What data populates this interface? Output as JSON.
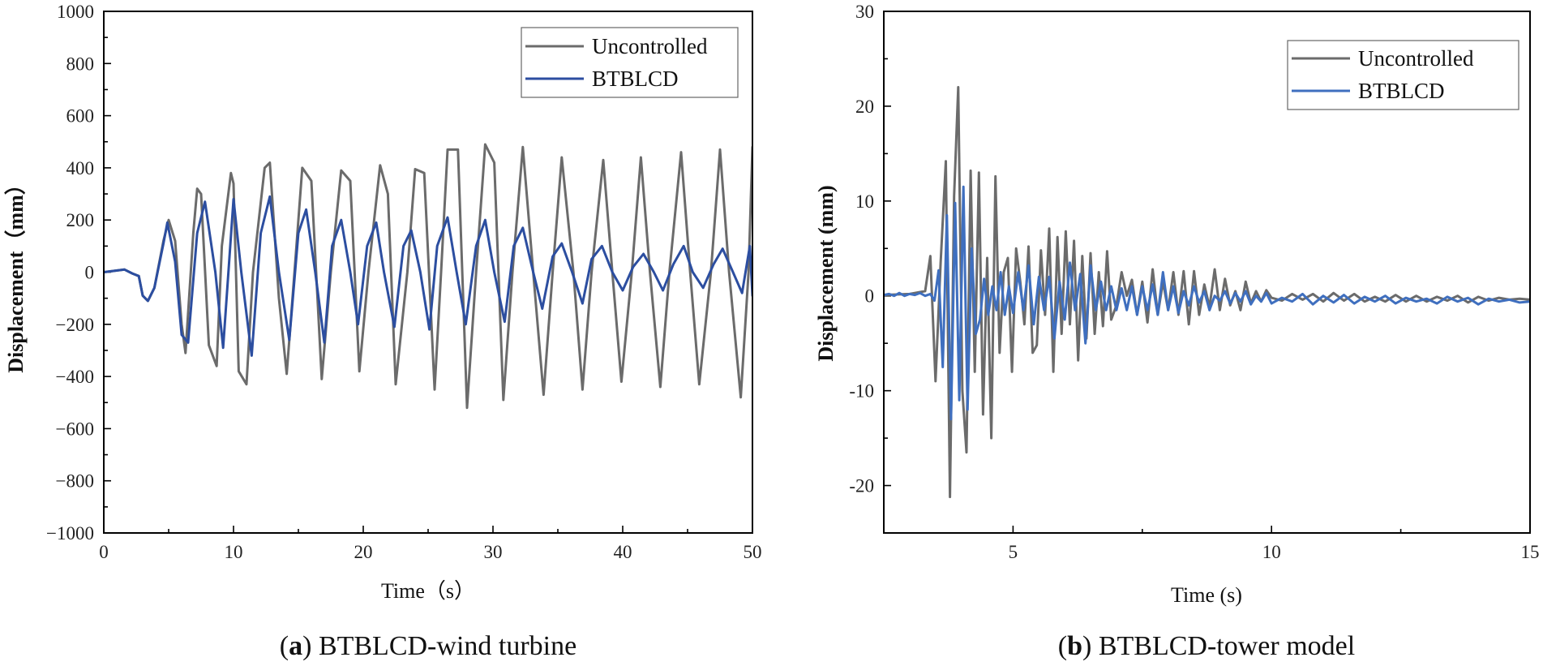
{
  "chart_data": [
    {
      "type": "line",
      "panel": "a",
      "caption_letter": "a",
      "caption_text": "BTBLCD-wind turbine",
      "xlabel": "Time（s）",
      "ylabel": "Displacement（mm）",
      "xlim": [
        0,
        50
      ],
      "ylim": [
        -1000,
        1000
      ],
      "xticks": [
        0,
        10,
        20,
        30,
        40,
        50
      ],
      "xtick_labels": [
        "0",
        "10",
        "20",
        "30",
        "40",
        "50"
      ],
      "yticks": [
        -1000,
        -800,
        -600,
        -400,
        -200,
        0,
        200,
        400,
        600,
        800,
        1000
      ],
      "ytick_labels": [
        "−1000",
        "−800",
        "−600",
        "−400",
        "−200",
        "0",
        "200",
        "400",
        "600",
        "800",
        "1000"
      ],
      "legend_position": "top-right",
      "series": [
        {
          "name": "Uncontrolled",
          "color": "#6b6b6b",
          "x": [
            0,
            0.8,
            1.6,
            2.2,
            2.7,
            3.0,
            3.4,
            3.9,
            4.6,
            5.0,
            5.5,
            6.0,
            6.3,
            6.9,
            7.2,
            7.5,
            8.1,
            8.7,
            9.1,
            9.8,
            10.0,
            10.4,
            11.0,
            11.5,
            12.4,
            12.8,
            13.5,
            14.1,
            14.7,
            15.3,
            16.0,
            16.8,
            17.5,
            18.3,
            19.0,
            19.7,
            20.4,
            21.3,
            21.9,
            22.5,
            23.4,
            24.0,
            24.7,
            25.5,
            26.0,
            26.5,
            27.3,
            28.0,
            28.7,
            29.4,
            30.1,
            30.8,
            31.5,
            32.3,
            33.1,
            33.9,
            34.6,
            35.3,
            36.2,
            36.9,
            37.6,
            38.5,
            39.2,
            39.9,
            40.7,
            41.4,
            42.1,
            42.9,
            43.6,
            44.5,
            45.2,
            45.9,
            46.8,
            47.5,
            48.2,
            49.1,
            49.7,
            50.0
          ],
          "y": [
            0,
            5,
            10,
            -5,
            -15,
            -90,
            -110,
            -60,
            120,
            200,
            120,
            -200,
            -310,
            150,
            320,
            300,
            -280,
            -360,
            100,
            380,
            340,
            -380,
            -430,
            0,
            400,
            420,
            -100,
            -390,
            0,
            400,
            350,
            -410,
            0,
            390,
            350,
            -380,
            0,
            410,
            300,
            -430,
            0,
            395,
            380,
            -450,
            0,
            470,
            470,
            -520,
            0,
            490,
            420,
            -490,
            0,
            480,
            0,
            -470,
            0,
            440,
            0,
            -450,
            0,
            430,
            0,
            -420,
            0,
            440,
            0,
            -440,
            0,
            460,
            0,
            -430,
            0,
            470,
            0,
            -480,
            0,
            480
          ]
        },
        {
          "name": "BTBLCD",
          "color": "#2c4ea0",
          "x": [
            0,
            0.8,
            1.6,
            2.2,
            2.7,
            3.0,
            3.4,
            3.9,
            4.6,
            4.9,
            5.5,
            6.0,
            6.5,
            7.2,
            7.8,
            8.6,
            9.2,
            10.0,
            10.6,
            11.4,
            12.1,
            12.8,
            13.5,
            14.3,
            15.0,
            15.6,
            16.3,
            17.0,
            17.6,
            18.3,
            19.0,
            19.6,
            20.3,
            21.0,
            21.6,
            22.4,
            23.1,
            23.7,
            24.4,
            25.1,
            25.7,
            26.5,
            27.2,
            27.9,
            28.7,
            29.4,
            30.1,
            30.9,
            31.6,
            32.3,
            33.1,
            33.8,
            34.6,
            35.3,
            36.1,
            36.9,
            37.6,
            38.4,
            39.2,
            40.0,
            40.8,
            41.6,
            42.4,
            43.1,
            43.9,
            44.7,
            45.4,
            46.2,
            47.0,
            47.7,
            48.5,
            49.2,
            49.8,
            50.0
          ],
          "y": [
            0,
            5,
            10,
            -5,
            -15,
            -90,
            -110,
            -60,
            110,
            190,
            40,
            -240,
            -270,
            150,
            270,
            0,
            -290,
            280,
            0,
            -320,
            150,
            290,
            0,
            -260,
            150,
            240,
            0,
            -270,
            100,
            200,
            0,
            -200,
            100,
            190,
            0,
            -210,
            100,
            160,
            0,
            -220,
            100,
            210,
            0,
            -200,
            100,
            200,
            0,
            -190,
            100,
            170,
            0,
            -140,
            60,
            110,
            0,
            -120,
            50,
            100,
            0,
            -70,
            20,
            70,
            0,
            -70,
            30,
            100,
            0,
            -60,
            30,
            90,
            0,
            -80,
            100,
            -90
          ]
        }
      ]
    },
    {
      "type": "line",
      "panel": "b",
      "caption_letter": "b",
      "caption_text": "BTBLCD-tower model",
      "xlabel": "Time (s)",
      "ylabel": "Displacement (mm)",
      "xlim": [
        2.5,
        15
      ],
      "ylim": [
        -25,
        30
      ],
      "xticks": [
        5,
        10,
        15
      ],
      "xtick_labels": [
        "5",
        "10",
        "15"
      ],
      "yticks": [
        -20,
        -10,
        0,
        10,
        20,
        30
      ],
      "ytick_labels": [
        "-20",
        "-10",
        "0",
        "10",
        "20",
        "30"
      ],
      "legend_position": "top-right",
      "series": [
        {
          "name": "Uncontrolled",
          "color": "#6b6b6b",
          "x": [
            2.5,
            3.0,
            3.3,
            3.4,
            3.5,
            3.6,
            3.7,
            3.78,
            3.86,
            3.94,
            4.02,
            4.1,
            4.18,
            4.26,
            4.34,
            4.42,
            4.5,
            4.58,
            4.66,
            4.74,
            4.82,
            4.9,
            4.98,
            5.06,
            5.14,
            5.22,
            5.3,
            5.38,
            5.46,
            5.54,
            5.62,
            5.7,
            5.78,
            5.86,
            5.94,
            6.02,
            6.1,
            6.18,
            6.26,
            6.34,
            6.42,
            6.5,
            6.58,
            6.66,
            6.74,
            6.82,
            6.9,
            7.0,
            7.1,
            7.2,
            7.3,
            7.4,
            7.5,
            7.6,
            7.7,
            7.8,
            7.9,
            8.0,
            8.1,
            8.2,
            8.3,
            8.4,
            8.5,
            8.6,
            8.7,
            8.8,
            8.9,
            9.0,
            9.1,
            9.2,
            9.3,
            9.4,
            9.5,
            9.6,
            9.7,
            9.8,
            9.9,
            10.0,
            10.2,
            10.4,
            10.6,
            10.8,
            11.0,
            11.2,
            11.4,
            11.6,
            11.8,
            12.0,
            12.2,
            12.4,
            12.6,
            12.8,
            13.0,
            13.2,
            13.4,
            13.6,
            13.8,
            14.0,
            14.2,
            14.4,
            14.6,
            14.8,
            15.0
          ],
          "y": [
            0.1,
            0.2,
            0.5,
            4.2,
            -9,
            3.5,
            14.2,
            -21.2,
            10.5,
            22.0,
            -10,
            -16.5,
            13.2,
            -8,
            13.0,
            -12.5,
            4,
            -15,
            12.6,
            -6,
            2.5,
            4.0,
            -8.0,
            5,
            1.5,
            -3,
            5.2,
            -6,
            -5.2,
            4.8,
            -2,
            7.1,
            -8,
            6.2,
            -4,
            6.8,
            -3,
            5.8,
            -6.8,
            4.2,
            -4.5,
            4.5,
            -4,
            2.5,
            -3.2,
            4.7,
            -2.5,
            -1,
            2.5,
            0,
            1.7,
            -2,
            1.5,
            -2.8,
            2.8,
            -2,
            1.5,
            -1.5,
            2.5,
            -2,
            2.6,
            -3,
            2.6,
            -2,
            1.2,
            -1.2,
            2.8,
            -1.5,
            1.8,
            -1,
            0.5,
            -1.5,
            1.5,
            -0.8,
            0.5,
            -0.6,
            0.6,
            -0.2,
            -0.5,
            0.2,
            -0.4,
            0.2,
            -0.6,
            0.3,
            -0.5,
            0.2,
            -0.6,
            -0.1,
            -0.6,
            0.1,
            -0.6,
            0.0,
            -0.6,
            -0.1,
            -0.5,
            0.0,
            -0.7,
            -0.1,
            -0.5,
            -0.2,
            -0.4,
            -0.3,
            -0.4
          ]
        },
        {
          "name": "BTBLCD",
          "color": "#3f6fbf",
          "x": [
            2.5,
            2.6,
            2.7,
            2.8,
            2.9,
            3.0,
            3.1,
            3.2,
            3.3,
            3.4,
            3.48,
            3.56,
            3.64,
            3.72,
            3.8,
            3.88,
            3.96,
            4.04,
            4.12,
            4.2,
            4.28,
            4.36,
            4.44,
            4.52,
            4.6,
            4.68,
            4.76,
            4.84,
            4.92,
            5.0,
            5.1,
            5.2,
            5.3,
            5.4,
            5.5,
            5.6,
            5.7,
            5.8,
            5.9,
            6.0,
            6.1,
            6.2,
            6.3,
            6.4,
            6.5,
            6.6,
            6.7,
            6.8,
            6.9,
            7.0,
            7.1,
            7.2,
            7.3,
            7.4,
            7.5,
            7.6,
            7.7,
            7.8,
            7.9,
            8.0,
            8.1,
            8.2,
            8.3,
            8.4,
            8.5,
            8.6,
            8.7,
            8.8,
            8.9,
            9.0,
            9.1,
            9.2,
            9.3,
            9.4,
            9.5,
            9.6,
            9.7,
            9.8,
            9.9,
            10.0,
            10.2,
            10.4,
            10.6,
            10.8,
            11.0,
            11.2,
            11.4,
            11.6,
            11.8,
            12.0,
            12.2,
            12.4,
            12.6,
            12.8,
            13.0,
            13.2,
            13.4,
            13.6,
            13.8,
            14.0,
            14.2,
            14.4,
            14.6,
            14.8,
            15.0
          ],
          "y": [
            0.1,
            0.2,
            0.0,
            0.3,
            0.0,
            0.2,
            0.1,
            0.3,
            0.0,
            0.2,
            -0.5,
            2.7,
            -7.5,
            8.5,
            -13.0,
            9.8,
            -11.0,
            11.5,
            -12.0,
            5.0,
            -4.0,
            -2.5,
            1.8,
            -2.0,
            1.0,
            -1.5,
            2.5,
            -2.0,
            1.0,
            -1.8,
            2.5,
            -1.5,
            3.2,
            -3.0,
            2.0,
            -1.5,
            2.0,
            -4.5,
            1.5,
            -2.5,
            3.5,
            -1.5,
            2.3,
            -5.0,
            3.2,
            -1.5,
            1.5,
            -1.5,
            1.0,
            -1.5,
            0.8,
            -1.5,
            1.0,
            -2.0,
            1.0,
            -1.5,
            1.2,
            -2.0,
            2.5,
            -1.5,
            1.0,
            -1.8,
            0.5,
            -1.0,
            1.0,
            -0.7,
            0.5,
            -1.5,
            0.0,
            -0.5,
            0.5,
            -0.8,
            0.3,
            -0.6,
            0.5,
            -0.9,
            0.0,
            -0.6,
            0.3,
            -0.8,
            -0.2,
            -0.6,
            0.2,
            -0.9,
            0.0,
            -0.7,
            0.1,
            -0.8,
            -0.1,
            -0.6,
            0.0,
            -0.8,
            -0.2,
            -0.6,
            -0.3,
            -0.8,
            -0.1,
            -0.6,
            -0.2,
            -0.9,
            -0.3,
            -0.6,
            -0.4,
            -0.7,
            -0.6
          ]
        }
      ]
    }
  ]
}
